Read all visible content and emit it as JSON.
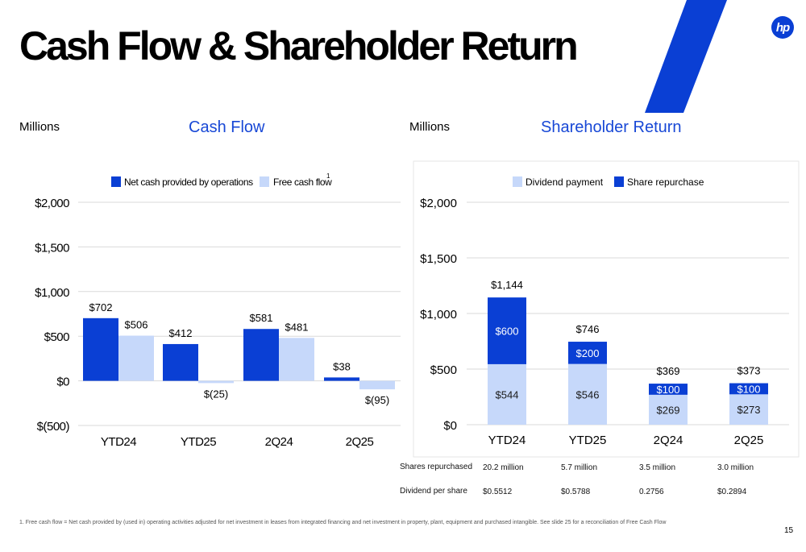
{
  "page": {
    "title": "Cash Flow & Shareholder Return",
    "logo": "hp",
    "page_number": "15",
    "footnote": "1.   Free cash flow = Net cash provided by (used in) operating activities adjusted for net investment in leases from integrated financing  and net investment in property, plant, equipment and purchased intangible. See slide 25 for a reconciliation of Free Cash Flow"
  },
  "colors": {
    "dark": "#0a3fd4",
    "light": "#c6d8fa",
    "grid": "#d9d9d9"
  },
  "chart_data": [
    {
      "type": "bar",
      "title": "Cash Flow",
      "units": "Millions",
      "categories": [
        "YTD24",
        "YTD25",
        "2Q24",
        "2Q25"
      ],
      "series": [
        {
          "name": "Net cash provided by operations",
          "values": [
            702,
            412,
            581,
            38
          ],
          "labels": [
            "$702",
            "$412",
            "$581",
            "$38"
          ]
        },
        {
          "name": "Free cash flow",
          "name_superscript": "1",
          "values": [
            506,
            -25,
            481,
            -95
          ],
          "labels": [
            "$506",
            "$(25)",
            "$481",
            "$(95)"
          ]
        }
      ],
      "ylim": [
        -500,
        2000
      ],
      "ticks": [
        -500,
        0,
        500,
        1000,
        1500,
        2000
      ],
      "tick_labels": [
        "$(500)",
        "$0",
        "$500",
        "$1,000",
        "$1,500",
        "$2,000"
      ],
      "grid": true,
      "legend": "top"
    },
    {
      "type": "bar",
      "stacked": true,
      "title": "Shareholder Return",
      "units": "Millions",
      "categories": [
        "YTD24",
        "YTD25",
        "2Q24",
        "2Q25"
      ],
      "series": [
        {
          "name": "Dividend payment",
          "values": [
            544,
            546,
            269,
            273
          ],
          "labels": [
            "$544",
            "$546",
            "$269",
            "$273"
          ]
        },
        {
          "name": "Share repurchase",
          "values": [
            600,
            200,
            100,
            100
          ],
          "labels": [
            "$600",
            "$200",
            "$100",
            "$100"
          ]
        }
      ],
      "totals": [
        1144,
        746,
        369,
        373
      ],
      "total_labels": [
        "$1,144",
        "$746",
        "$369",
        "$373"
      ],
      "ylim": [
        0,
        2000
      ],
      "ticks": [
        0,
        500,
        1000,
        1500,
        2000
      ],
      "tick_labels": [
        "$0",
        "$500",
        "$1,000",
        "$1,500",
        "$2,000"
      ],
      "grid": true,
      "legend": "top"
    }
  ],
  "table": {
    "rows": [
      {
        "label": "Shares repurchased",
        "values": [
          "20.2 million",
          "5.7 million",
          "3.5 million",
          "3.0  million"
        ]
      },
      {
        "label": "Dividend per share",
        "values": [
          "$0.5512",
          "$0.5788",
          "0.2756",
          "$0.2894"
        ]
      }
    ]
  }
}
